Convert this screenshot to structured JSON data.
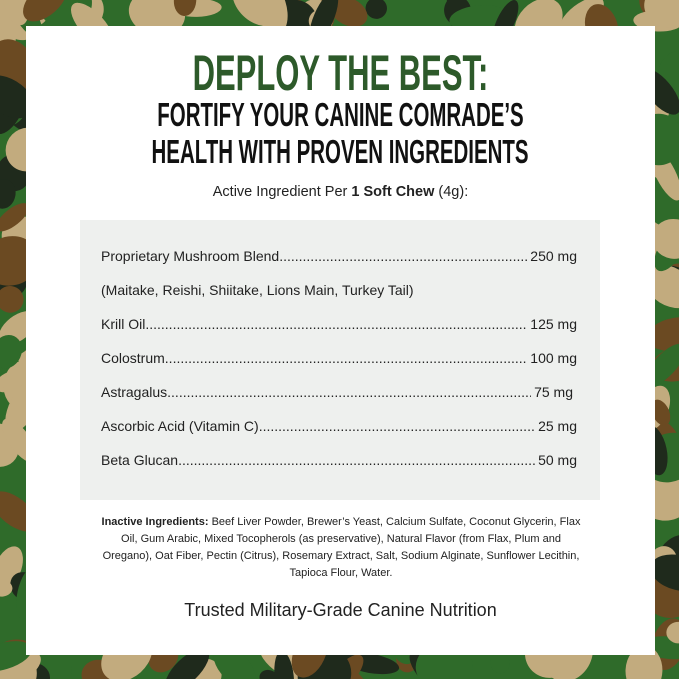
{
  "headline": "DEPLOY THE BEST:",
  "subheadline_line1": "FORTIFY YOUR CANINE COMRADE’S",
  "subheadline_line2": "HEALTH WITH PROVEN INGREDIENTS",
  "serving": {
    "prefix": "Active Ingredient Per ",
    "bold": "1 Soft Chew",
    "suffix": " (4g):"
  },
  "ingredients": [
    {
      "name": "Proprietary Mushroom Blend",
      "amount": "250 mg"
    },
    {
      "name": "(Maitake, Reishi, Shiitake, Lions Main, Turkey Tail)",
      "amount": ""
    },
    {
      "name": "Krill Oil",
      "amount": "125 mg"
    },
    {
      "name": "Colostrum",
      "amount": "100 mg"
    },
    {
      "name": "Astragalus",
      "amount": "75 mg"
    },
    {
      "name": "Ascorbic Acid (Vitamin C)",
      "amount": "25 mg"
    },
    {
      "name": "Beta Glucan",
      "amount": "50 mg"
    }
  ],
  "inactive": {
    "label": "Inactive Ingredients:",
    "text": " Beef Liver Powder, Brewer’s Yeast, Calcium Sulfate, Coconut Glycerin, Flax Oil, Gum Arabic, Mixed Tocopherols (as preservative), Natural Flavor (from Flax, Plum and Oregano), Oat Fiber, Pectin (Citrus), Rosemary Extract, Salt, Sodium Alginate, Sunflower Lecithin, Tapioca Flour, Water."
  },
  "footer": "Trusted Military-Grade Canine Nutrition",
  "colors": {
    "headline": "#2d5a2a",
    "camo_green": "#2f6b2a",
    "camo_tan": "#c2ab7e",
    "camo_brown": "#6b4a22",
    "camo_dark": "#1f2a1c",
    "box": "#eef0ee"
  }
}
